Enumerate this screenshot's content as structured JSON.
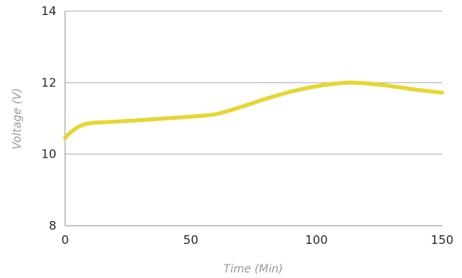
{
  "colors": {
    "series": "#e6d632",
    "grid": "#b0b0b0",
    "text": "#2a2a2a",
    "axis_title": "#9a9a9a"
  },
  "chart_data": {
    "type": "line",
    "title": "",
    "xlabel": "Time (Min)",
    "ylabel": "Voltage (V)",
    "xlim": [
      0,
      150
    ],
    "ylim": [
      8,
      14
    ],
    "x_ticks": [
      0,
      50,
      100,
      150
    ],
    "y_ticks": [
      8,
      10,
      12,
      14
    ],
    "grid": "horizontal",
    "legend": "none",
    "series": [
      {
        "x": [
          0,
          2,
          5,
          8,
          12,
          20,
          30,
          40,
          50,
          60,
          70,
          80,
          90,
          100,
          110,
          115,
          120,
          130,
          140,
          150
        ],
        "y": [
          10.45,
          10.6,
          10.75,
          10.84,
          10.88,
          10.91,
          10.95,
          11.0,
          11.05,
          11.12,
          11.32,
          11.55,
          11.75,
          11.9,
          11.99,
          12.0,
          11.98,
          11.9,
          11.8,
          11.72
        ]
      }
    ]
  }
}
